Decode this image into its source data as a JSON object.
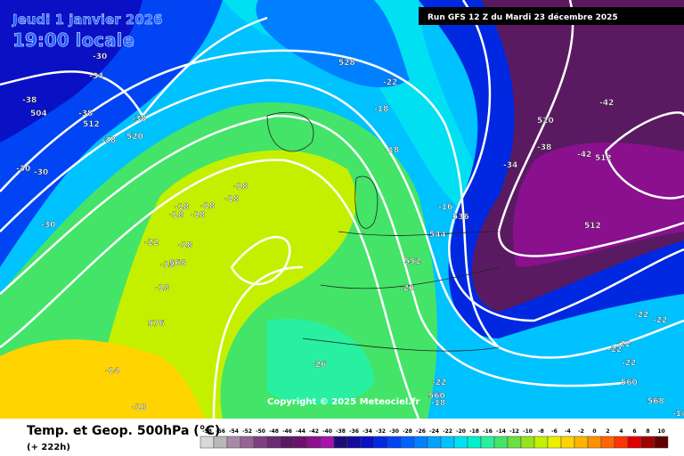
{
  "header": {
    "date": "Jeudi 1 janvier 2026",
    "time": "19:00 locale",
    "run": "Run GFS 12 Z du Mardi 23 décembre 2025"
  },
  "footer": {
    "title": "Temp. et Geop. 500hPa (°C)",
    "lead": "(+ 222h)"
  },
  "copyright": "Copyright © 2025 Meteociel.fr",
  "scale": {
    "labels": [
      -58,
      -56,
      -54,
      -52,
      -50,
      -48,
      -46,
      -44,
      -42,
      -40,
      -38,
      -36,
      -34,
      -32,
      -30,
      -28,
      -26,
      -24,
      -22,
      -20,
      -18,
      -16,
      -14,
      -12,
      -10,
      -8,
      -6,
      -4,
      -2,
      0,
      2,
      4,
      6,
      8,
      10
    ],
    "colors": [
      "#d8d8d8",
      "#b8b8b8",
      "#a88aa8",
      "#946494",
      "#804080",
      "#6c2a72",
      "#5a1a62",
      "#6e1070",
      "#8a108e",
      "#a414a8",
      "#1c0c78",
      "#140a9c",
      "#0a10c4",
      "#0028e0",
      "#0044f4",
      "#0062ff",
      "#0080ff",
      "#00a2ff",
      "#00c2ff",
      "#00e0f2",
      "#00f0cc",
      "#28f0a0",
      "#44e468",
      "#6ce040",
      "#96e41e",
      "#c4f000",
      "#ecf000",
      "#ffd400",
      "#ffb400",
      "#ff9000",
      "#ff6400",
      "#ff3400",
      "#e00000",
      "#a00000",
      "#600000"
    ]
  },
  "map_labels": [
    "-30",
    "-34",
    "-38",
    "504",
    "-38",
    "512",
    "-38",
    "-38",
    "520",
    "-30",
    "-30",
    "-30",
    "528",
    "-22",
    "-18",
    "-18",
    "-18",
    "-18",
    "-18",
    "-18",
    "-18",
    "-18",
    "-22",
    "-18",
    "-18",
    "568",
    "-18",
    "576",
    "-14",
    "-10",
    "-26",
    "-22",
    "560",
    "-18",
    "-16",
    "544",
    "552",
    "-26",
    "536",
    "-34",
    "-38",
    "520",
    "-42",
    "-42",
    "512",
    "512",
    "-22",
    "-22",
    "-22",
    "-22",
    "-22",
    "560",
    "568",
    "-14"
  ]
}
